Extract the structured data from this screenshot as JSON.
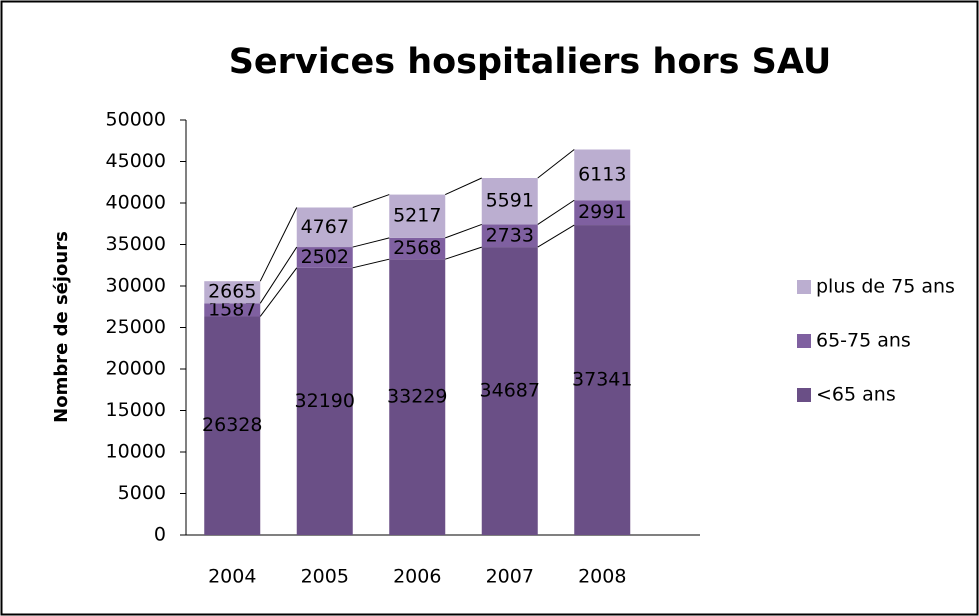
{
  "chart_data": {
    "type": "stacked_bar",
    "title": "Services hospitaliers hors SAU",
    "y_label": "Nombre de séjours",
    "categories": [
      "2004",
      "2005",
      "2006",
      "2007",
      "2008"
    ],
    "series": [
      {
        "name": "<65 ans",
        "color": "#6a4f86",
        "values": [
          26328,
          32190,
          33229,
          34687,
          37341
        ]
      },
      {
        "name": "65-75 ans",
        "color": "#7f60a0",
        "values": [
          1587,
          2502,
          2568,
          2733,
          2991
        ]
      },
      {
        "name": "plus de 75 ans",
        "color": "#bbaed0",
        "values": [
          2665,
          4767,
          5217,
          5591,
          6113
        ]
      }
    ],
    "ylim": [
      0,
      50000
    ],
    "yticks": [
      0,
      5000,
      10000,
      15000,
      20000,
      25000,
      30000,
      35000,
      40000,
      45000,
      50000
    ],
    "legend": "right"
  }
}
